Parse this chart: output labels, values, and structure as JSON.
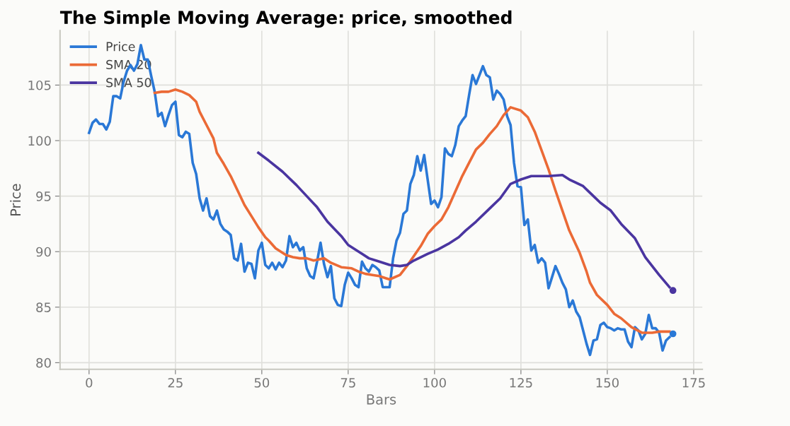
{
  "chart_data": {
    "type": "line",
    "title": "The Simple Moving Average: price, smoothed",
    "xlabel": "Bars",
    "ylabel": "Price",
    "xlim": [
      -8.4,
      177.5
    ],
    "ylim": [
      79.4,
      109.9
    ],
    "xticks": [
      0,
      25,
      50,
      75,
      100,
      125,
      150,
      175
    ],
    "yticks": [
      80,
      85,
      90,
      95,
      100,
      105
    ],
    "grid": true,
    "legend": "top left",
    "marker": "none",
    "line_style": "solid",
    "series": [
      {
        "name": "Price",
        "color": "#2a78d6",
        "x": [
          0,
          1,
          2,
          3,
          4,
          5,
          6,
          7,
          8,
          9,
          10,
          11,
          12,
          13,
          14,
          15,
          16,
          17,
          18,
          19,
          20,
          21,
          22,
          23,
          24,
          25,
          26,
          27,
          28,
          29,
          30,
          31,
          32,
          33,
          34,
          35,
          36,
          37,
          38,
          39,
          40,
          41,
          42,
          43,
          44,
          45,
          46,
          47,
          48,
          49,
          50,
          51,
          52,
          53,
          54,
          55,
          56,
          57,
          58,
          59,
          60,
          61,
          62,
          63,
          64,
          65,
          66,
          67,
          68,
          69,
          70,
          71,
          72,
          73,
          74,
          75,
          76,
          77,
          78,
          79,
          80,
          81,
          82,
          83,
          84,
          85,
          86,
          87,
          88,
          89,
          90,
          91,
          92,
          93,
          94,
          95,
          96,
          97,
          98,
          99,
          100,
          101,
          102,
          103,
          104,
          105,
          106,
          107,
          108,
          109,
          110,
          111,
          112,
          113,
          114,
          115,
          116,
          117,
          118,
          119,
          120,
          121,
          122,
          123,
          124,
          125,
          126,
          127,
          128,
          129,
          130,
          131,
          132,
          133,
          134,
          135,
          136,
          137,
          138,
          139,
          140,
          141,
          142,
          143,
          144,
          145,
          146,
          147,
          148,
          149,
          150,
          151,
          152,
          153,
          154,
          155,
          156,
          157,
          158,
          159,
          160,
          161,
          162,
          163,
          164,
          165,
          166,
          167,
          168
        ],
        "values": [
          100.7,
          101.6,
          101.9,
          101.5,
          101.5,
          101.0,
          101.7,
          104.0,
          104.0,
          103.8,
          105.3,
          106.3,
          106.8,
          106.3,
          106.9,
          108.6,
          107.3,
          107.3,
          105.8,
          104.4,
          102.2,
          102.5,
          101.3,
          102.3,
          103.2,
          103.5,
          100.5,
          100.3,
          100.8,
          100.6,
          98.0,
          97.0,
          94.8,
          93.7,
          94.8,
          93.2,
          92.9,
          93.7,
          92.5,
          92.0,
          91.8,
          91.5,
          89.4,
          89.2,
          90.7,
          88.2,
          89.0,
          88.9,
          87.6,
          90.1,
          90.8,
          88.8,
          88.5,
          89.0,
          88.4,
          89.0,
          88.6,
          89.2,
          91.4,
          90.4,
          90.8,
          90.1,
          90.4,
          88.5,
          87.8,
          87.6,
          89.1,
          90.8,
          88.9,
          87.7,
          88.7,
          85.8,
          85.2,
          85.1,
          87.0,
          88.1,
          87.6,
          87.0,
          86.8,
          89.1,
          88.5,
          88.2,
          88.8,
          88.6,
          88.3,
          86.8,
          86.8,
          86.8,
          89.4,
          91.0,
          91.7,
          93.4,
          93.7,
          96.1,
          96.9,
          98.6,
          97.3,
          98.7,
          96.5,
          94.3,
          94.6,
          94.0,
          94.9,
          99.3,
          98.8,
          98.6,
          99.6,
          101.3,
          101.8,
          102.2,
          104.1,
          105.9,
          105.1,
          105.9,
          106.7,
          105.9,
          105.7,
          103.7,
          104.5,
          104.2,
          103.7,
          102.2,
          101.4,
          98.0,
          95.9,
          95.8,
          92.4,
          92.9,
          90.1,
          90.6,
          89.0,
          89.4,
          89.0,
          86.7,
          87.7,
          88.7,
          88.0,
          87.2,
          86.6,
          85.0,
          85.6,
          84.6,
          84.1,
          82.9,
          81.7,
          80.7,
          82.0,
          82.1,
          83.4,
          83.6,
          83.2,
          83.1,
          82.9,
          83.1,
          83.0,
          83.0,
          81.9,
          81.4,
          83.2,
          82.9,
          82.1,
          82.6,
          84.3,
          83.1,
          83.1,
          82.7,
          81.1,
          82.0,
          82.3
        ]
      },
      {
        "name": "SMA 20",
        "color": "#eb6a36",
        "x": [
          19,
          21,
          23,
          25,
          27,
          29,
          31,
          32,
          34,
          36,
          37,
          39,
          41,
          43,
          45,
          47,
          49,
          51,
          52,
          54,
          57,
          59,
          61,
          63,
          65,
          68,
          70,
          73,
          76,
          78,
          80,
          82,
          84,
          86,
          87,
          90,
          92,
          94,
          96,
          98,
          100,
          102,
          104,
          106,
          108,
          110,
          112,
          114,
          116,
          118,
          120,
          122,
          125,
          127,
          129,
          131,
          133,
          135,
          137,
          139,
          142,
          144,
          145,
          147,
          150,
          152,
          154,
          157,
          160,
          163,
          165,
          168
        ],
        "values": [
          104.3,
          104.4,
          104.4,
          104.6,
          104.4,
          104.1,
          103.5,
          102.6,
          101.4,
          100.2,
          98.9,
          97.9,
          96.8,
          95.5,
          94.2,
          93.2,
          92.2,
          91.3,
          91.0,
          90.3,
          89.7,
          89.5,
          89.4,
          89.4,
          89.2,
          89.4,
          89.0,
          88.6,
          88.5,
          88.2,
          88.0,
          87.9,
          87.8,
          87.6,
          87.5,
          87.9,
          88.7,
          89.6,
          90.5,
          91.6,
          92.3,
          92.9,
          94.0,
          95.4,
          96.8,
          98.0,
          99.2,
          99.8,
          100.6,
          101.3,
          102.3,
          103.0,
          102.7,
          102.1,
          100.8,
          99.1,
          97.4,
          95.5,
          93.7,
          91.9,
          89.9,
          88.2,
          87.2,
          86.1,
          85.2,
          84.4,
          84.0,
          83.2,
          82.7,
          82.7,
          82.8,
          82.8
        ]
      },
      {
        "name": "SMA 50",
        "color": "#4a35a0",
        "x": [
          49,
          52,
          56,
          60,
          63,
          66,
          69,
          73,
          75,
          79,
          81,
          84,
          87,
          90,
          92,
          94,
          98,
          101,
          104,
          107,
          109,
          112,
          116,
          119,
          122,
          125,
          128,
          133,
          137,
          139,
          143,
          146,
          148,
          151,
          154,
          158,
          161,
          165,
          168
        ],
        "values": [
          98.9,
          98.2,
          97.2,
          96.0,
          95.0,
          94.0,
          92.7,
          91.4,
          90.6,
          89.8,
          89.4,
          89.1,
          88.8,
          88.7,
          88.8,
          89.2,
          89.8,
          90.2,
          90.7,
          91.3,
          91.9,
          92.7,
          93.9,
          94.8,
          96.1,
          96.5,
          96.8,
          96.8,
          96.9,
          96.5,
          95.9,
          95.0,
          94.4,
          93.7,
          92.5,
          91.2,
          89.5,
          87.9,
          86.8
        ]
      },
      {
        "type": "scatter",
        "marker": "circle",
        "x": [
          169,
          169
        ],
        "values": [
          82.6,
          86.5
        ],
        "colors": [
          "#2a78d6",
          "#4a35a0"
        ]
      }
    ]
  }
}
